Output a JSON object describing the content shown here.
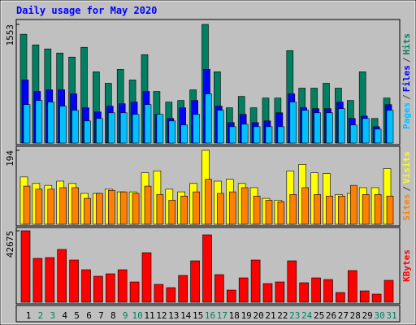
{
  "chart_data": [
    {
      "type": "bar",
      "title": "Daily usage for May 2020",
      "separator": "/",
      "ylim": [
        0,
        1553
      ],
      "yticks": [
        1553
      ],
      "series": [
        {
          "name": "Pages",
          "color": "#00c0ff",
          "values": [
            503,
            557,
            536,
            482,
            428,
            289,
            321,
            396,
            396,
            375,
            503,
            375,
            289,
            236,
            375,
            643,
            428,
            214,
            246,
            214,
            214,
            214,
            536,
            428,
            396,
            396,
            450,
            236,
            321,
            182,
            428
          ]
        },
        {
          "name": "Files",
          "color": "#0000ff",
          "values": [
            825,
            675,
            696,
            696,
            643,
            461,
            407,
            482,
            514,
            536,
            675,
            375,
            321,
            461,
            557,
            964,
            482,
            268,
            375,
            268,
            289,
            396,
            643,
            461,
            450,
            450,
            536,
            321,
            353,
            214,
            503
          ]
        },
        {
          "name": "Hits",
          "color": "#008060",
          "values": [
            1424,
            1285,
            1232,
            1178,
            1125,
            1253,
            932,
            782,
            964,
            825,
            1157,
            675,
            536,
            557,
            696,
            1553,
            932,
            461,
            610,
            461,
            589,
            589,
            1210,
            718,
            718,
            782,
            718,
            557,
            932,
            321,
            589
          ]
        }
      ]
    },
    {
      "type": "bar",
      "separator": "/",
      "ylim": [
        0,
        194
      ],
      "yticks": [
        194
      ],
      "series": [
        {
          "name": "Sites",
          "color": "#ff8000",
          "values": [
            100,
            92,
            92,
            96,
            96,
            68,
            81,
            89,
            85,
            81,
            100,
            78,
            63,
            74,
            85,
            118,
            81,
            85,
            96,
            74,
            63,
            59,
            78,
            96,
            78,
            74,
            74,
            102,
            78,
            78,
            74
          ]
        },
        {
          "name": "Visits",
          "color": "#ffff00",
          "values": [
            124,
            107,
            102,
            113,
            107,
            81,
            81,
            92,
            85,
            85,
            135,
            140,
            92,
            85,
            107,
            194,
            113,
            118,
            107,
            96,
            68,
            63,
            140,
            157,
            135,
            133,
            78,
            81,
            96,
            96,
            146
          ]
        }
      ]
    },
    {
      "type": "bar",
      "ylim": [
        0,
        42675
      ],
      "yticks": [
        42675
      ],
      "categories": [
        "1",
        "2",
        "3",
        "4",
        "5",
        "6",
        "7",
        "8",
        "9",
        "10",
        "11",
        "12",
        "13",
        "14",
        "15",
        "16",
        "17",
        "18",
        "19",
        "20",
        "21",
        "22",
        "23",
        "24",
        "25",
        "26",
        "27",
        "28",
        "29",
        "30",
        "31"
      ],
      "label_colors": [
        "#000000",
        "#008060",
        "#008060",
        "#000000",
        "#000000",
        "#000000",
        "#000000",
        "#000000",
        "#008060",
        "#008060",
        "#000000",
        "#000000",
        "#000000",
        "#000000",
        "#000000",
        "#008060",
        "#008060",
        "#000000",
        "#000000",
        "#000000",
        "#000000",
        "#000000",
        "#008060",
        "#008060",
        "#000000",
        "#000000",
        "#000000",
        "#000000",
        "#000000",
        "#008060",
        "#008060"
      ],
      "series": [
        {
          "name": "KBytes",
          "color": "#ff0000",
          "values": [
            42675,
            26187,
            26672,
            31522,
            25217,
            19398,
            15518,
            16973,
            19398,
            12124,
            29582,
            10669,
            8729,
            16003,
            24732,
            40250,
            16488,
            7274,
            14548,
            25217,
            11154,
            12124,
            24732,
            11639,
            14548,
            13579,
            5819,
            18913,
            6789,
            4849,
            13094
          ]
        }
      ]
    }
  ]
}
